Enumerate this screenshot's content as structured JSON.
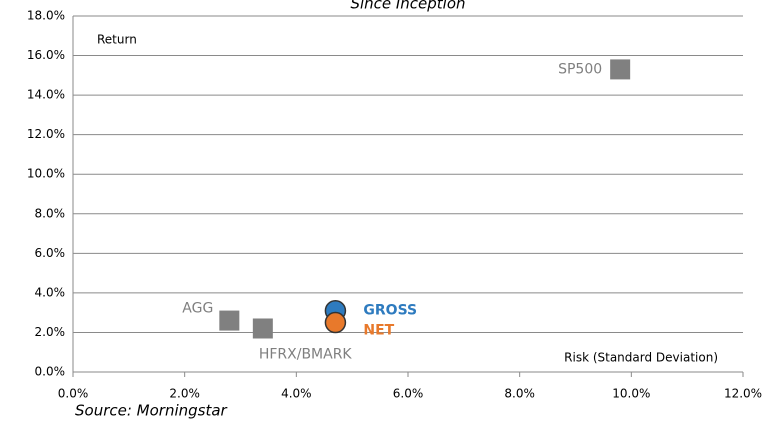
{
  "chart_data": {
    "type": "scatter",
    "title": "Since Inception",
    "y_label": "Return",
    "x_label": "Risk (Standard Deviation)",
    "source": "Source: Morningstar",
    "grid": true,
    "xlim": [
      0,
      12
    ],
    "ylim": [
      0,
      18
    ],
    "xticks": [
      {
        "value": 0,
        "label": "0.0%"
      },
      {
        "value": 2,
        "label": "2.0%"
      },
      {
        "value": 4,
        "label": "4.0%"
      },
      {
        "value": 6,
        "label": "6.0%"
      },
      {
        "value": 8,
        "label": "8.0%"
      },
      {
        "value": 10,
        "label": "10.0%"
      },
      {
        "value": 12,
        "label": "12.0%"
      }
    ],
    "yticks": [
      {
        "value": 0,
        "label": "0.0%"
      },
      {
        "value": 2,
        "label": "2.0%"
      },
      {
        "value": 4,
        "label": "4.0%"
      },
      {
        "value": 6,
        "label": "6.0%"
      },
      {
        "value": 8,
        "label": "8.0%"
      },
      {
        "value": 10,
        "label": "10.0%"
      },
      {
        "value": 12,
        "label": "12.0%"
      },
      {
        "value": 14,
        "label": "14.0%"
      },
      {
        "value": 16,
        "label": "16.0%"
      },
      {
        "value": 18,
        "label": "18.0%"
      }
    ],
    "series": [
      {
        "name": "SP500",
        "color": "#808080",
        "marker": "square",
        "x": [
          9.8
        ],
        "values": [
          15.3
        ]
      },
      {
        "name": "AGG",
        "color": "#808080",
        "marker": "square",
        "x": [
          2.8
        ],
        "values": [
          2.6
        ]
      },
      {
        "name": "HFRX/BMARK",
        "color": "#808080",
        "marker": "square",
        "x": [
          3.4
        ],
        "values": [
          2.2
        ]
      },
      {
        "name": "GROSS",
        "color": "#2e7bbf",
        "marker": "circle",
        "x": [
          4.7
        ],
        "values": [
          3.1
        ]
      },
      {
        "name": "NET",
        "color": "#e8792b",
        "marker": "circle",
        "x": [
          4.7
        ],
        "values": [
          2.5
        ]
      }
    ]
  }
}
